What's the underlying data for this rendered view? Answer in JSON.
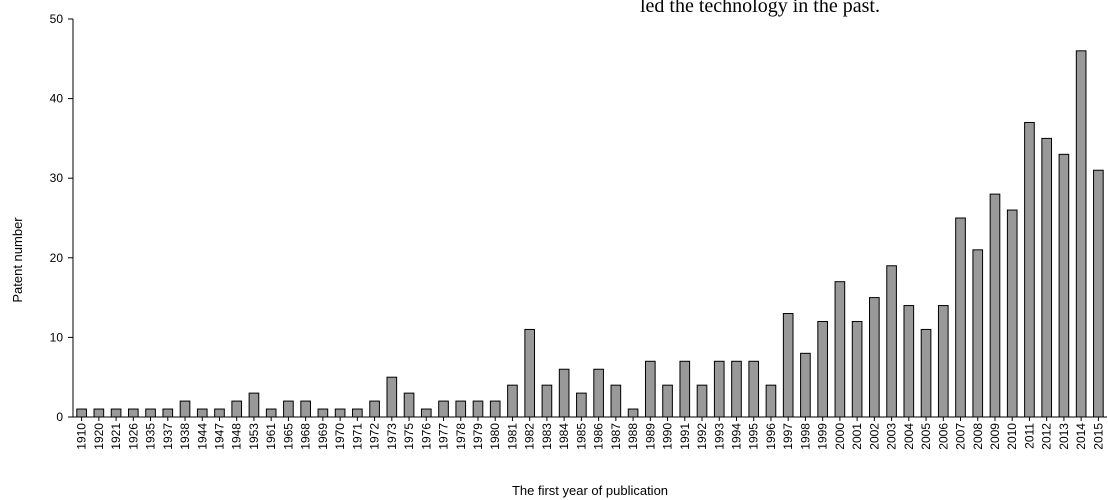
{
  "caption_text": "led the technology in the past.",
  "chart_data": {
    "type": "bar",
    "title": "",
    "xlabel": "The first year of publication",
    "ylabel": "Patent number",
    "ylim": [
      0,
      50
    ],
    "yticks": [
      0,
      10,
      20,
      30,
      40,
      50
    ],
    "grid": false,
    "bar_color": "#999999",
    "bar_edge_color": "#000000",
    "categories": [
      "1910",
      "1920",
      "1921",
      "1926",
      "1935",
      "1937",
      "1938",
      "1944",
      "1947",
      "1948",
      "1953",
      "1961",
      "1965",
      "1968",
      "1969",
      "1970",
      "1971",
      "1972",
      "1973",
      "1975",
      "1976",
      "1977",
      "1978",
      "1979",
      "1980",
      "1981",
      "1982",
      "1983",
      "1984",
      "1985",
      "1986",
      "1987",
      "1988",
      "1989",
      "1990",
      "1991",
      "1992",
      "1993",
      "1994",
      "1995",
      "1996",
      "1997",
      "1998",
      "1999",
      "2000",
      "2001",
      "2002",
      "2003",
      "2004",
      "2005",
      "2006",
      "2007",
      "2008",
      "2009",
      "2010",
      "2011",
      "2012",
      "2013",
      "2014",
      "2015"
    ],
    "values": [
      1,
      1,
      1,
      1,
      1,
      1,
      2,
      1,
      1,
      2,
      3,
      1,
      2,
      2,
      1,
      1,
      1,
      2,
      5,
      3,
      1,
      2,
      2,
      2,
      2,
      4,
      11,
      4,
      6,
      3,
      6,
      4,
      1,
      7,
      4,
      7,
      4,
      7,
      7,
      7,
      4,
      13,
      8,
      12,
      17,
      12,
      15,
      19,
      14,
      11,
      14,
      25,
      21,
      28,
      26,
      37,
      35,
      33,
      46,
      31
    ]
  }
}
